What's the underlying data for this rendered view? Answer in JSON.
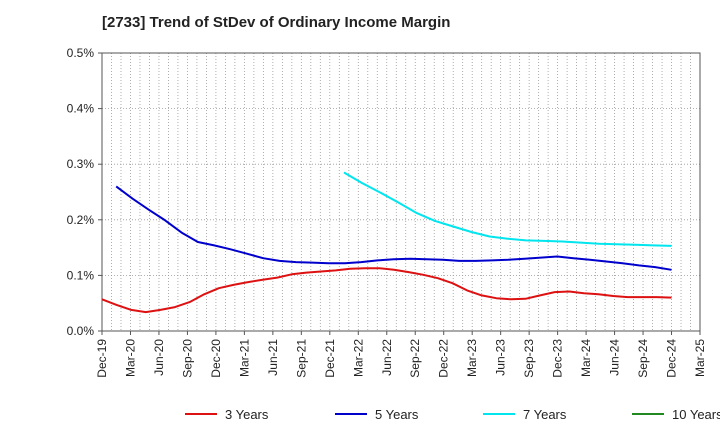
{
  "chart_data": {
    "type": "line",
    "title": "[2733]  Trend of StDev of Ordinary Income Margin",
    "xlabel": "",
    "ylabel": "",
    "x_ticks": [
      "Dec-19",
      "Mar-20",
      "Jun-20",
      "Sep-20",
      "Dec-20",
      "Mar-21",
      "Jun-21",
      "Sep-21",
      "Dec-21",
      "Mar-22",
      "Jun-22",
      "Sep-22",
      "Dec-22",
      "Mar-23",
      "Jun-23",
      "Sep-23",
      "Dec-23",
      "Mar-24",
      "Jun-24",
      "Sep-24",
      "Dec-24",
      "Mar-25"
    ],
    "y_ticks": [
      "0.0%",
      "0.1%",
      "0.2%",
      "0.3%",
      "0.4%",
      "0.5%"
    ],
    "ylim": [
      0,
      0.5
    ],
    "grid": "dotted",
    "legend_position": "bottom",
    "series": [
      {
        "name": "3 Years",
        "color": "#dd1111",
        "start_index": 0,
        "values": [
          0.057,
          0.047,
          0.038,
          0.034,
          0.038,
          0.043,
          0.052,
          0.066,
          0.077,
          0.083,
          0.088,
          0.092,
          0.096,
          0.102,
          0.105,
          0.107,
          0.109,
          0.112,
          0.113,
          0.113,
          0.11,
          0.106,
          0.101,
          0.095,
          0.086,
          0.073,
          0.064,
          0.059,
          0.057,
          0.058,
          0.064,
          0.07,
          0.071,
          0.068,
          0.066,
          0.063,
          0.061,
          0.061,
          0.061,
          0.06
        ]
      },
      {
        "name": "5 Years",
        "color": "#0000cc",
        "start_index": 1,
        "values": [
          0.26,
          0.238,
          0.218,
          0.199,
          0.177,
          0.16,
          0.154,
          0.147,
          0.139,
          0.131,
          0.126,
          0.124,
          0.123,
          0.122,
          0.122,
          0.124,
          0.127,
          0.129,
          0.13,
          0.129,
          0.128,
          0.126,
          0.126,
          0.127,
          0.128,
          0.13,
          0.132,
          0.134,
          0.131,
          0.128,
          0.125,
          0.122,
          0.118,
          0.115,
          0.11
        ]
      },
      {
        "name": "7 Years",
        "color": "#00e5ee",
        "start_index": 17,
        "values": [
          0.285,
          0.266,
          0.249,
          0.231,
          0.212,
          0.198,
          0.188,
          0.178,
          0.17,
          0.166,
          0.163,
          0.162,
          0.161,
          0.159,
          0.157,
          0.156,
          0.155,
          0.154,
          0.153
        ]
      },
      {
        "name": "10 Years",
        "color": "#228822",
        "start_index": 0,
        "values": []
      }
    ]
  }
}
